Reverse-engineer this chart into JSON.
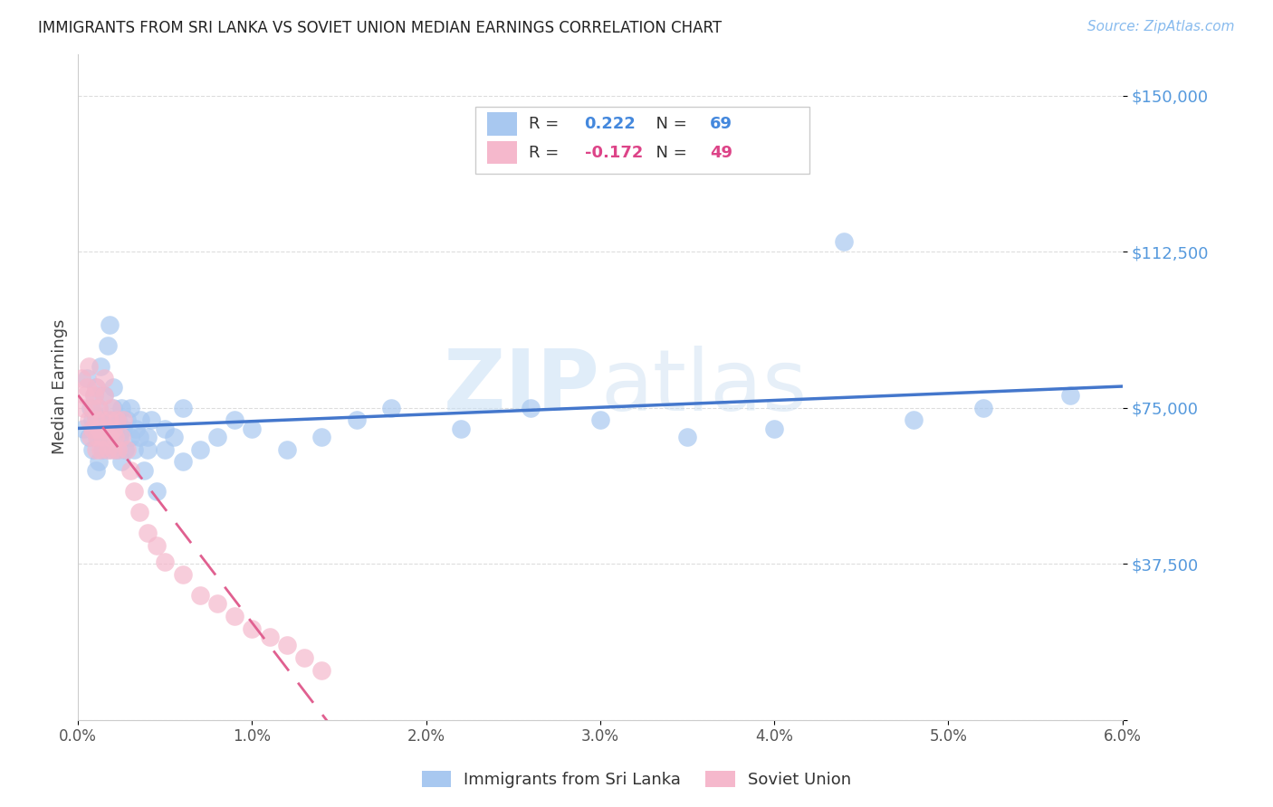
{
  "title": "IMMIGRANTS FROM SRI LANKA VS SOVIET UNION MEDIAN EARNINGS CORRELATION CHART",
  "source": "Source: ZipAtlas.com",
  "ylabel": "Median Earnings",
  "y_ticks": [
    0,
    37500,
    75000,
    112500,
    150000
  ],
  "y_tick_labels": [
    "",
    "$37,500",
    "$75,000",
    "$112,500",
    "$150,000"
  ],
  "x_range": [
    0.0,
    0.06
  ],
  "y_range": [
    0,
    160000
  ],
  "x_ticks": [
    0.0,
    0.01,
    0.02,
    0.03,
    0.04,
    0.05,
    0.06
  ],
  "x_tick_labels": [
    "0.0%",
    "1.0%",
    "2.0%",
    "3.0%",
    "4.0%",
    "5.0%",
    "6.0%"
  ],
  "sri_lanka_color": "#a8c8f0",
  "sri_lanka_line_color": "#4477cc",
  "soviet_color": "#f5b8cc",
  "soviet_line_color": "#e06090",
  "sri_lanka_R": "0.222",
  "sri_lanka_N": "69",
  "soviet_R": "-0.172",
  "soviet_N": "49",
  "watermark_zip": "ZIP",
  "watermark_atlas": "atlas",
  "background_color": "#ffffff",
  "grid_color": "#dddddd",
  "sri_lanka_x": [
    0.0003,
    0.0005,
    0.0006,
    0.0007,
    0.0008,
    0.0008,
    0.0009,
    0.001,
    0.001,
    0.001,
    0.0011,
    0.0012,
    0.0012,
    0.0013,
    0.0013,
    0.0014,
    0.0014,
    0.0015,
    0.0015,
    0.0016,
    0.0017,
    0.0018,
    0.0018,
    0.0019,
    0.002,
    0.002,
    0.002,
    0.0021,
    0.0022,
    0.0023,
    0.0024,
    0.0025,
    0.0025,
    0.0026,
    0.0027,
    0.0028,
    0.003,
    0.003,
    0.0032,
    0.0033,
    0.0035,
    0.0036,
    0.0038,
    0.004,
    0.004,
    0.0042,
    0.0045,
    0.005,
    0.005,
    0.0055,
    0.006,
    0.006,
    0.007,
    0.008,
    0.009,
    0.01,
    0.012,
    0.014,
    0.016,
    0.018,
    0.022,
    0.026,
    0.03,
    0.035,
    0.04,
    0.044,
    0.048,
    0.052,
    0.057
  ],
  "sri_lanka_y": [
    70000,
    82000,
    68000,
    75000,
    72000,
    65000,
    78000,
    60000,
    73000,
    80000,
    68000,
    75000,
    62000,
    70000,
    85000,
    72000,
    65000,
    78000,
    68000,
    72000,
    90000,
    95000,
    65000,
    72000,
    68000,
    75000,
    80000,
    70000,
    65000,
    72000,
    68000,
    75000,
    62000,
    70000,
    65000,
    72000,
    68000,
    75000,
    65000,
    70000,
    68000,
    72000,
    60000,
    65000,
    68000,
    72000,
    55000,
    65000,
    70000,
    68000,
    62000,
    75000,
    65000,
    68000,
    72000,
    70000,
    65000,
    68000,
    72000,
    75000,
    70000,
    75000,
    72000,
    68000,
    70000,
    115000,
    72000,
    75000,
    78000
  ],
  "soviet_x": [
    0.0002,
    0.0003,
    0.0004,
    0.0005,
    0.0006,
    0.0006,
    0.0007,
    0.0008,
    0.0008,
    0.0009,
    0.001,
    0.001,
    0.001,
    0.0011,
    0.0012,
    0.0012,
    0.0013,
    0.0014,
    0.0014,
    0.0015,
    0.0015,
    0.0016,
    0.0017,
    0.0018,
    0.0018,
    0.0019,
    0.002,
    0.002,
    0.0021,
    0.0022,
    0.0023,
    0.0025,
    0.0026,
    0.0028,
    0.003,
    0.0032,
    0.0035,
    0.004,
    0.0045,
    0.005,
    0.006,
    0.007,
    0.008,
    0.009,
    0.01,
    0.011,
    0.012,
    0.013,
    0.014
  ],
  "soviet_y": [
    82000,
    75000,
    78000,
    80000,
    72000,
    85000,
    68000,
    75000,
    70000,
    78000,
    65000,
    72000,
    80000,
    68000,
    75000,
    70000,
    65000,
    72000,
    68000,
    78000,
    82000,
    70000,
    65000,
    72000,
    68000,
    75000,
    65000,
    70000,
    68000,
    72000,
    65000,
    68000,
    72000,
    65000,
    60000,
    55000,
    50000,
    45000,
    42000,
    38000,
    35000,
    30000,
    28000,
    25000,
    22000,
    20000,
    18000,
    15000,
    12000
  ]
}
